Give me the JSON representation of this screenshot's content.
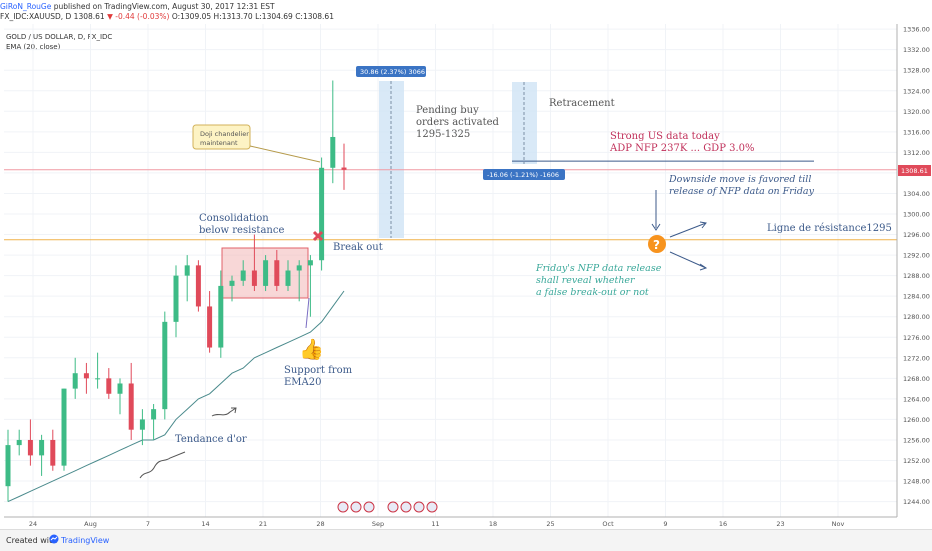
{
  "header": {
    "author": "GiRoN_RouGe",
    "published": "published on TradingView.com, August 30, 2017 12:31 EST",
    "symbol": "FX_IDC:XAUUSD, D",
    "last": "1308.61",
    "change": "-0.44 (-0.03%)",
    "ohlc": "O:1309.05 H:1313.70 L:1304.69 C:1308.61"
  },
  "legend": {
    "title": "GOLD / US DOLLAR, D, FX_IDC",
    "indicator": "EMA (20, close)"
  },
  "footer": {
    "created_with": "Created with",
    "brand": "TradingView"
  },
  "annotations": {
    "doji_line1": "Doji chandelier",
    "doji_line2": "maintenant",
    "consolidation1": "Consolidation",
    "consolidation2": "below resistance",
    "breakout": "Break out",
    "support1": "Support from",
    "support2": "EMA20",
    "tendance": "Tendance d'or",
    "pending1": "Pending buy",
    "pending2": "orders activated",
    "pending3": "1295-1325",
    "retracement": "Retracement",
    "strong1": "Strong US data today",
    "strong2": "ADP NFP 237K ... GDP 3.0%",
    "downside1": "Downside move is favored till",
    "downside2": "release of NFP data on Friday",
    "resistance": "Ligne de résistance1295",
    "nfp1": "Friday's NFP data release",
    "nfp2": "shall reveal whether",
    "nfp3": "a false break-out or not",
    "measure_up": "30.86 (2.37%) 3066",
    "measure_down": "-16.06 (-1.21%) -1606",
    "price_tag": "1308.61"
  },
  "colors": {
    "up": "#3dbb86",
    "down": "#e04a5a",
    "ema": "#4a8a8c",
    "resistance": "#f0b24a",
    "annotation_teal": "#3aa89a",
    "annotation_red": "#c0305a",
    "annotation_blue": "#3c5a8a",
    "question": "#f7931e"
  },
  "chart_data": {
    "type": "candlestick",
    "title": "GOLD / US DOLLAR, D, FX_IDC",
    "ylim": [
      1241,
      1337
    ],
    "y_ticks": [
      "1336.00",
      "1332.00",
      "1328.00",
      "1324.00",
      "1320.00",
      "1316.00",
      "1312.00",
      "1308.00",
      "1304.00",
      "1300.00",
      "1296.00",
      "1292.00",
      "1288.00",
      "1284.00",
      "1280.00",
      "1276.00",
      "1272.00",
      "1268.00",
      "1264.00",
      "1260.00",
      "1256.00",
      "1252.00",
      "1248.00",
      "1244.00"
    ],
    "x_ticks": [
      "24",
      "Aug",
      "7",
      "14",
      "21",
      "28",
      "Sep",
      "11",
      "18",
      "25",
      "Oct",
      "9",
      "16",
      "23",
      "Nov"
    ],
    "candles": [
      {
        "o": 1247,
        "h": 1258,
        "l": 1244,
        "c": 1255
      },
      {
        "o": 1255,
        "h": 1258,
        "l": 1253,
        "c": 1256
      },
      {
        "o": 1256,
        "h": 1260,
        "l": 1251,
        "c": 1253
      },
      {
        "o": 1253,
        "h": 1257,
        "l": 1249,
        "c": 1256
      },
      {
        "o": 1256,
        "h": 1258,
        "l": 1250,
        "c": 1251
      },
      {
        "o": 1251,
        "h": 1266,
        "l": 1250,
        "c": 1266
      },
      {
        "o": 1266,
        "h": 1272,
        "l": 1264,
        "c": 1269
      },
      {
        "o": 1269,
        "h": 1271,
        "l": 1265,
        "c": 1268
      },
      {
        "o": 1268,
        "h": 1273,
        "l": 1266,
        "c": 1268
      },
      {
        "o": 1268,
        "h": 1270,
        "l": 1264,
        "c": 1265
      },
      {
        "o": 1265,
        "h": 1268,
        "l": 1261,
        "c": 1267
      },
      {
        "o": 1267,
        "h": 1271,
        "l": 1256,
        "c": 1258
      },
      {
        "o": 1258,
        "h": 1262,
        "l": 1255,
        "c": 1260
      },
      {
        "o": 1260,
        "h": 1263,
        "l": 1256,
        "c": 1262
      },
      {
        "o": 1262,
        "h": 1281,
        "l": 1260,
        "c": 1279
      },
      {
        "o": 1279,
        "h": 1290,
        "l": 1276,
        "c": 1288
      },
      {
        "o": 1288,
        "h": 1292,
        "l": 1283,
        "c": 1290
      },
      {
        "o": 1290,
        "h": 1291,
        "l": 1281,
        "c": 1282
      },
      {
        "o": 1282,
        "h": 1285,
        "l": 1273,
        "c": 1274
      },
      {
        "o": 1274,
        "h": 1289,
        "l": 1272,
        "c": 1286
      },
      {
        "o": 1286,
        "h": 1288,
        "l": 1283,
        "c": 1287
      },
      {
        "o": 1287,
        "h": 1291,
        "l": 1286,
        "c": 1289
      },
      {
        "o": 1289,
        "h": 1296,
        "l": 1285,
        "c": 1286
      },
      {
        "o": 1286,
        "h": 1292,
        "l": 1285,
        "c": 1291
      },
      {
        "o": 1291,
        "h": 1293,
        "l": 1285,
        "c": 1286
      },
      {
        "o": 1286,
        "h": 1291,
        "l": 1285,
        "c": 1289
      },
      {
        "o": 1289,
        "h": 1291,
        "l": 1283,
        "c": 1290
      },
      {
        "o": 1290,
        "h": 1292,
        "l": 1280,
        "c": 1291
      },
      {
        "o": 1291,
        "h": 1311,
        "l": 1289,
        "c": 1309
      },
      {
        "o": 1309,
        "h": 1326,
        "l": 1306,
        "c": 1315
      },
      {
        "o": 1309.05,
        "h": 1313.7,
        "l": 1304.69,
        "c": 1308.61
      }
    ],
    "ema20": [
      1244,
      1245,
      1246,
      1247,
      1248,
      1249,
      1250,
      1251,
      1252,
      1253,
      1254,
      1255,
      1256,
      1256,
      1257,
      1260,
      1262,
      1264,
      1265,
      1267,
      1269,
      1270,
      1272,
      1273,
      1274,
      1275,
      1276,
      1277,
      1279,
      1282,
      1285
    ],
    "resistance_level": 1295,
    "last_price": 1308.61
  }
}
